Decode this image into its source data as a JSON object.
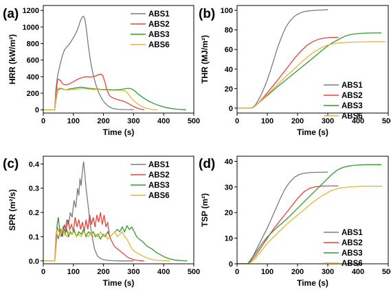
{
  "figure": {
    "panels": [
      "(a)",
      "(b)",
      "(c)",
      "(d)"
    ]
  },
  "chart_data": [
    {
      "panel": "(a)",
      "type": "line",
      "xlabel": "Time (s)",
      "ylabel": "HRR (kW/m²)",
      "xlim": [
        0,
        500
      ],
      "ylim": [
        -40,
        1260
      ],
      "xticks": [
        0,
        100,
        200,
        300,
        400,
        500
      ],
      "yticks": [
        0,
        200,
        400,
        600,
        800,
        1000,
        1200
      ],
      "legend_position": "top-right",
      "series": [
        {
          "name": "ABS1",
          "color": "#7a7a7a",
          "x": [
            0,
            38,
            42,
            48,
            55,
            62,
            70,
            78,
            86,
            95,
            105,
            115,
            122,
            128,
            133,
            138,
            143,
            150,
            158,
            166,
            175,
            185,
            195,
            205,
            215,
            230,
            250,
            270,
            290,
            300
          ],
          "y": [
            0,
            0,
            250,
            420,
            530,
            640,
            720,
            760,
            790,
            840,
            900,
            980,
            1060,
            1115,
            1130,
            1100,
            980,
            760,
            560,
            420,
            300,
            200,
            130,
            80,
            45,
            15,
            5,
            2,
            1,
            0
          ]
        },
        {
          "name": "ABS2",
          "color": "#e8403c",
          "x": [
            0,
            38,
            42,
            48,
            55,
            65,
            75,
            85,
            95,
            105,
            115,
            125,
            135,
            145,
            155,
            165,
            175,
            185,
            192,
            198,
            205,
            212,
            220,
            230,
            245,
            260,
            275,
            290,
            305,
            320,
            335
          ],
          "y": [
            0,
            0,
            200,
            370,
            360,
            310,
            300,
            310,
            330,
            350,
            370,
            385,
            395,
            400,
            395,
            400,
            410,
            425,
            430,
            410,
            330,
            230,
            170,
            145,
            125,
            110,
            90,
            60,
            30,
            10,
            0
          ]
        },
        {
          "name": "ABS3",
          "color": "#2f9a2f",
          "x": [
            0,
            38,
            42,
            48,
            55,
            65,
            75,
            85,
            95,
            105,
            115,
            125,
            135,
            145,
            155,
            165,
            175,
            185,
            195,
            205,
            215,
            225,
            235,
            245,
            255,
            265,
            275,
            285,
            295,
            305,
            315,
            330,
            350,
            370,
            390,
            410,
            430,
            450,
            475
          ],
          "y": [
            0,
            0,
            120,
            235,
            255,
            250,
            240,
            250,
            255,
            262,
            268,
            272,
            270,
            262,
            258,
            255,
            250,
            248,
            245,
            245,
            242,
            242,
            240,
            242,
            245,
            250,
            255,
            258,
            250,
            225,
            190,
            150,
            105,
            70,
            45,
            25,
            12,
            5,
            0
          ]
        },
        {
          "name": "ABS6",
          "color": "#e6b43a",
          "x": [
            0,
            38,
            42,
            48,
            55,
            65,
            75,
            85,
            95,
            105,
            115,
            125,
            135,
            145,
            155,
            165,
            175,
            185,
            195,
            205,
            215,
            225,
            235,
            245,
            255,
            262,
            268,
            275,
            285,
            295,
            310,
            325,
            340,
            360,
            380
          ],
          "y": [
            0,
            0,
            150,
            260,
            262,
            255,
            240,
            240,
            245,
            248,
            250,
            255,
            255,
            252,
            248,
            245,
            245,
            242,
            240,
            238,
            236,
            235,
            234,
            234,
            233,
            232,
            230,
            220,
            180,
            130,
            80,
            45,
            20,
            5,
            0
          ]
        }
      ]
    },
    {
      "panel": "(b)",
      "type": "line",
      "xlabel": "Time (s)",
      "ylabel": "THR (MJ/m²)",
      "xlim": [
        0,
        500
      ],
      "ylim": [
        -5,
        105
      ],
      "xticks": [
        0,
        100,
        200,
        300,
        400,
        500
      ],
      "yticks": [
        0,
        20,
        40,
        60,
        80,
        100
      ],
      "legend_position": "bottom-right",
      "series": [
        {
          "name": "ABS1",
          "color": "#7a7a7a",
          "x": [
            0,
            40,
            50,
            60,
            70,
            80,
            90,
            100,
            110,
            120,
            130,
            140,
            150,
            160,
            170,
            180,
            190,
            200,
            210,
            220,
            230,
            250,
            270,
            290,
            300
          ],
          "y": [
            0,
            0,
            0.5,
            3,
            8,
            14,
            21,
            29,
            38,
            48,
            58,
            67,
            75,
            82,
            87,
            91,
            94,
            96,
            97.5,
            98.5,
            99.2,
            99.8,
            100.2,
            100.5,
            100.6
          ]
        },
        {
          "name": "ABS2",
          "color": "#e8403c",
          "x": [
            0,
            40,
            55,
            70,
            90,
            110,
            130,
            150,
            170,
            190,
            210,
            230,
            250,
            270,
            290,
            310,
            335
          ],
          "y": [
            0,
            0,
            1,
            5,
            12,
            19.5,
            27,
            35,
            43,
            51,
            58,
            64,
            68,
            70.5,
            71.8,
            72.3,
            72.5
          ]
        },
        {
          "name": "ABS3",
          "color": "#2f9a2f",
          "x": [
            0,
            40,
            55,
            70,
            100,
            130,
            160,
            190,
            220,
            250,
            280,
            310,
            340,
            360,
            380,
            400,
            420,
            440,
            460,
            478
          ],
          "y": [
            0,
            0,
            1,
            5,
            13,
            21,
            28.5,
            36,
            43.5,
            51,
            59,
            66,
            71,
            74,
            75.5,
            76.3,
            76.7,
            76.9,
            77,
            77
          ]
        },
        {
          "name": "ABS6",
          "color": "#e6b43a",
          "x": [
            0,
            40,
            55,
            70,
            100,
            130,
            160,
            190,
            220,
            250,
            280,
            300,
            320,
            340,
            360,
            380,
            420,
            460,
            490
          ],
          "y": [
            0,
            0,
            1,
            5,
            14,
            23,
            32,
            40.5,
            49,
            56.5,
            62,
            64.5,
            66,
            66.8,
            67.2,
            67.5,
            67.8,
            68,
            68
          ]
        }
      ]
    },
    {
      "panel": "(c)",
      "type": "line",
      "xlabel": "Time (s)",
      "ylabel": "SPR (m²/s)",
      "xlim": [
        0,
        500
      ],
      "ylim": [
        -0.012,
        0.432
      ],
      "xticks": [
        0,
        100,
        200,
        300,
        400,
        500
      ],
      "yticks": [
        0.0,
        0.1,
        0.2,
        0.3,
        0.4
      ],
      "legend_position": "top-right",
      "series": [
        {
          "name": "ABS1",
          "color": "#7a7a7a",
          "x": [
            0,
            38,
            42,
            46,
            50,
            55,
            60,
            66,
            72,
            78,
            84,
            90,
            96,
            102,
            108,
            114,
            118,
            122,
            126,
            130,
            134,
            138,
            142,
            148,
            155,
            162,
            170,
            180,
            190,
            200,
            215,
            230,
            250,
            270,
            290,
            300
          ],
          "y": [
            0,
            0,
            0.06,
            0.11,
            0.09,
            0.12,
            0.1,
            0.14,
            0.12,
            0.17,
            0.15,
            0.2,
            0.18,
            0.25,
            0.22,
            0.3,
            0.27,
            0.34,
            0.31,
            0.37,
            0.41,
            0.36,
            0.3,
            0.24,
            0.16,
            0.1,
            0.05,
            0.02,
            0.01,
            0.005,
            0.002,
            0.001,
            0,
            0,
            0,
            0
          ]
        },
        {
          "name": "ABS2",
          "color": "#e8403c",
          "x": [
            0,
            38,
            42,
            46,
            52,
            58,
            64,
            70,
            76,
            82,
            88,
            94,
            100,
            106,
            112,
            118,
            124,
            130,
            136,
            142,
            148,
            154,
            160,
            166,
            172,
            178,
            184,
            190,
            196,
            202,
            208,
            214,
            220,
            228,
            236,
            246,
            256,
            266,
            280,
            300,
            320,
            335
          ],
          "y": [
            0,
            0,
            0.1,
            0.14,
            0.12,
            0.13,
            0.1,
            0.15,
            0.12,
            0.17,
            0.13,
            0.15,
            0.12,
            0.18,
            0.14,
            0.17,
            0.13,
            0.16,
            0.12,
            0.17,
            0.13,
            0.19,
            0.15,
            0.18,
            0.14,
            0.19,
            0.16,
            0.2,
            0.15,
            0.19,
            0.14,
            0.16,
            0.1,
            0.08,
            0.06,
            0.05,
            0.04,
            0.03,
            0.015,
            0.005,
            0.001,
            0
          ]
        },
        {
          "name": "ABS3",
          "color": "#2f9a2f",
          "x": [
            0,
            38,
            42,
            46,
            50,
            55,
            60,
            66,
            72,
            78,
            84,
            90,
            96,
            102,
            110,
            118,
            126,
            134,
            142,
            150,
            158,
            166,
            174,
            182,
            190,
            198,
            206,
            214,
            222,
            230,
            238,
            246,
            254,
            262,
            270,
            278,
            286,
            294,
            302,
            310,
            318,
            330,
            345,
            360,
            375,
            390,
            405,
            420,
            440,
            460,
            478
          ],
          "y": [
            0,
            0,
            0.06,
            0.15,
            0.18,
            0.12,
            0.1,
            0.14,
            0.11,
            0.13,
            0.1,
            0.12,
            0.11,
            0.13,
            0.1,
            0.12,
            0.11,
            0.13,
            0.1,
            0.12,
            0.11,
            0.12,
            0.1,
            0.11,
            0.09,
            0.11,
            0.1,
            0.12,
            0.1,
            0.11,
            0.12,
            0.13,
            0.12,
            0.14,
            0.12,
            0.145,
            0.13,
            0.14,
            0.12,
            0.1,
            0.09,
            0.08,
            0.06,
            0.05,
            0.035,
            0.025,
            0.015,
            0.008,
            0.003,
            0.001,
            0
          ]
        },
        {
          "name": "ABS6",
          "color": "#e6b43a",
          "x": [
            0,
            38,
            42,
            46,
            52,
            58,
            64,
            70,
            78,
            86,
            94,
            102,
            110,
            118,
            126,
            134,
            142,
            150,
            158,
            166,
            174,
            182,
            190,
            198,
            206,
            214,
            222,
            230,
            238,
            246,
            254,
            262,
            270,
            278,
            286,
            294,
            302,
            315,
            330,
            345,
            360,
            380,
            400,
            420
          ],
          "y": [
            0,
            0,
            0.08,
            0.13,
            0.12,
            0.11,
            0.13,
            0.12,
            0.1,
            0.12,
            0.11,
            0.12,
            0.1,
            0.11,
            0.1,
            0.12,
            0.11,
            0.1,
            0.12,
            0.1,
            0.11,
            0.1,
            0.12,
            0.1,
            0.11,
            0.09,
            0.1,
            0.11,
            0.12,
            0.1,
            0.11,
            0.12,
            0.1,
            0.09,
            0.07,
            0.05,
            0.04,
            0.03,
            0.02,
            0.012,
            0.006,
            0.002,
            0.001,
            0
          ]
        }
      ]
    },
    {
      "panel": "(d)",
      "type": "line",
      "xlabel": "Time (s)",
      "ylabel": "TSP (m²)",
      "xlim": [
        0,
        500
      ],
      "ylim": [
        0,
        42
      ],
      "xticks": [
        0,
        100,
        200,
        300,
        400,
        500
      ],
      "yticks": [
        0,
        10,
        20,
        30,
        40
      ],
      "legend_position": "bottom-right",
      "series": [
        {
          "name": "ABS1",
          "color": "#7a7a7a",
          "x": [
            0,
            35,
            45,
            55,
            70,
            85,
            100,
            115,
            130,
            145,
            160,
            175,
            190,
            205,
            220,
            240,
            260,
            280,
            300
          ],
          "y": [
            0,
            0,
            1.5,
            3.5,
            7,
            10.5,
            14,
            18,
            22,
            26,
            29.5,
            32,
            33.8,
            34.8,
            35.3,
            35.6,
            35.7,
            35.75,
            35.8
          ]
        },
        {
          "name": "ABS2",
          "color": "#e8403c",
          "x": [
            0,
            35,
            45,
            60,
            80,
            100,
            120,
            140,
            160,
            180,
            200,
            220,
            240,
            260,
            280,
            300,
            320,
            335
          ],
          "y": [
            0,
            0,
            1,
            3,
            6.5,
            10,
            13.5,
            16.5,
            19.5,
            22.5,
            25.5,
            28,
            29.5,
            30.1,
            30.3,
            30.4,
            30.4,
            30.4
          ]
        },
        {
          "name": "ABS3",
          "color": "#2f9a2f",
          "x": [
            0,
            35,
            45,
            60,
            80,
            100,
            130,
            160,
            190,
            220,
            250,
            280,
            310,
            330,
            350,
            370,
            390,
            410,
            430,
            450,
            478
          ],
          "y": [
            0,
            0,
            1.5,
            4,
            7.5,
            10.5,
            14,
            17,
            20.5,
            24,
            27.5,
            31,
            34.5,
            36.5,
            37.6,
            38.2,
            38.5,
            38.6,
            38.7,
            38.7,
            38.7
          ]
        },
        {
          "name": "ABS6",
          "color": "#e6b43a",
          "x": [
            0,
            35,
            45,
            60,
            80,
            100,
            130,
            160,
            190,
            220,
            250,
            280,
            310,
            340,
            370,
            400,
            430,
            460,
            480
          ],
          "y": [
            0,
            0,
            0.5,
            2,
            5,
            8,
            11.5,
            15,
            18,
            21,
            24,
            26.5,
            28.5,
            29.6,
            30,
            30.2,
            30.3,
            30.3,
            30.3
          ]
        }
      ]
    }
  ]
}
